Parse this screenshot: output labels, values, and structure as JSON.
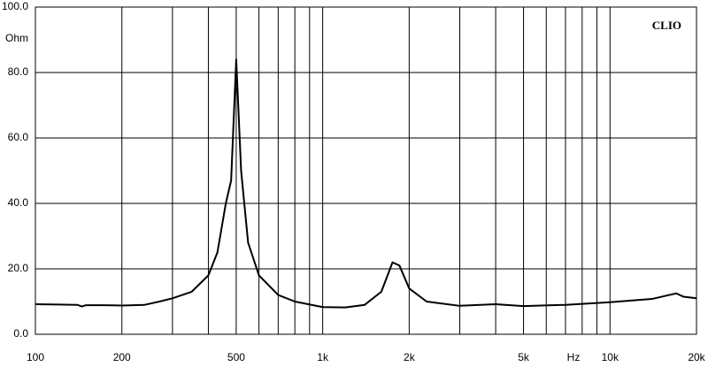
{
  "chart_data": {
    "type": "line",
    "annotation": "CLIO",
    "xlabel": "Hz",
    "ylabel": "Ohm",
    "log_x": true,
    "grid": true,
    "color": "#000000",
    "x": [
      100,
      120,
      140,
      145,
      150,
      170,
      200,
      240,
      270,
      300,
      350,
      400,
      430,
      460,
      480,
      500,
      520,
      550,
      600,
      700,
      800,
      1000,
      1200,
      1400,
      1600,
      1750,
      1850,
      2000,
      2300,
      3000,
      4000,
      5000,
      7000,
      10000,
      14000,
      17000,
      18000,
      20000
    ],
    "values": [
      9.2,
      9.1,
      9.0,
      8.5,
      8.9,
      8.9,
      8.8,
      9.0,
      10.0,
      11.0,
      13.0,
      18.0,
      25.0,
      40.0,
      47.0,
      84.0,
      50.0,
      28.0,
      18.0,
      12.0,
      10.0,
      8.3,
      8.2,
      9.0,
      13.0,
      22.0,
      21.0,
      14.0,
      10.0,
      8.7,
      9.2,
      8.6,
      9.0,
      9.8,
      10.8,
      12.5,
      11.5,
      11.0
    ],
    "xlim": [
      100,
      20000
    ],
    "xticks": [
      100,
      200,
      500,
      {
        "value": 1000,
        "label": "1k"
      },
      {
        "value": 2000,
        "label": "2k"
      },
      {
        "value": 5000,
        "label": "5k"
      },
      {
        "value": 10000,
        "label": "10k"
      },
      {
        "value": 20000,
        "label": "20k"
      }
    ],
    "xminor": [
      300,
      400,
      600,
      700,
      800,
      900,
      3000,
      4000,
      6000,
      7000,
      8000,
      9000
    ],
    "ylim": [
      0,
      100
    ],
    "yticks": [
      {
        "value": 0,
        "label": "0.0"
      },
      {
        "value": 20,
        "label": "20.0"
      },
      {
        "value": 40,
        "label": "40.0"
      },
      {
        "value": 60,
        "label": "60.0"
      },
      {
        "value": 80,
        "label": "80.0"
      },
      {
        "value": 100,
        "label": "100.0"
      }
    ]
  }
}
